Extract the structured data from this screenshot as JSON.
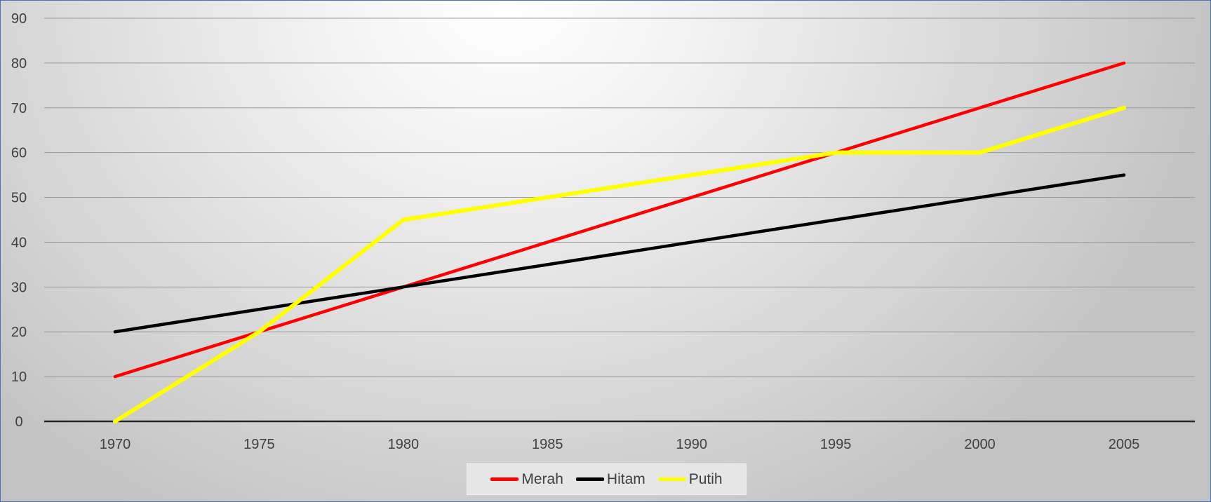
{
  "chart_data": {
    "type": "line",
    "title": "",
    "xlabel": "",
    "ylabel": "",
    "categories": [
      "1970",
      "1975",
      "1980",
      "1985",
      "1990",
      "1995",
      "2000",
      "2005"
    ],
    "ylim": [
      0,
      90
    ],
    "yticks": [
      0,
      10,
      20,
      30,
      40,
      50,
      60,
      70,
      80,
      90
    ],
    "grid": true,
    "legend_position": "bottom",
    "series": [
      {
        "name": "Merah",
        "color": "#ff0000",
        "values": [
          10,
          20,
          30,
          40,
          50,
          60,
          70,
          80
        ]
      },
      {
        "name": "Hitam",
        "color": "#000000",
        "values": [
          20,
          25,
          30,
          35,
          40,
          45,
          50,
          55
        ]
      },
      {
        "name": "Putih",
        "color": "#ffff00",
        "values": [
          0,
          20,
          45,
          50,
          55,
          60,
          60,
          70
        ]
      }
    ]
  }
}
